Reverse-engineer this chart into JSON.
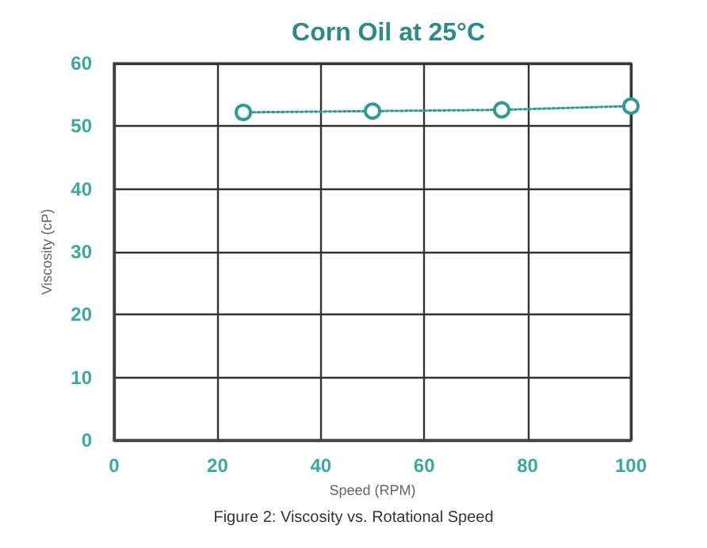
{
  "chart_data": {
    "type": "line",
    "title": "Corn Oil at 25°C",
    "xlabel": "Speed (RPM)",
    "ylabel": "Viscosity (cP)",
    "x": [
      25,
      50,
      75,
      100
    ],
    "series": [
      {
        "color": "#2e9a96",
        "values": [
          52.2,
          52.4,
          52.6,
          53.2
        ]
      }
    ],
    "xlim": [
      0,
      100
    ],
    "xticks": [
      0,
      20,
      40,
      60,
      80,
      100
    ],
    "ylim": [
      0,
      60
    ],
    "yticks": [
      0,
      10,
      20,
      30,
      40,
      50,
      60
    ],
    "grid": true,
    "marker": "circle",
    "line_style": "dotted",
    "annotations": [
      "Figure 2: Viscosity vs. Rotational Speed"
    ]
  }
}
